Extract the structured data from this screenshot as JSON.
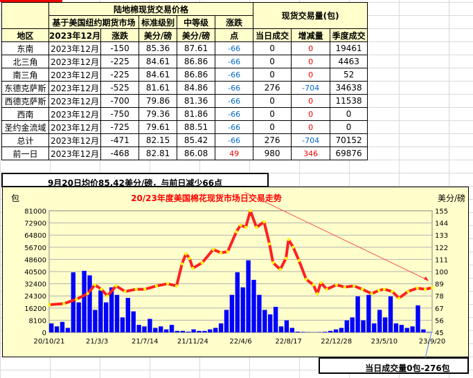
{
  "table": {
    "group_price": "陆地棉现货交易价格",
    "group_volume": "现货交易量(包)",
    "sub_basis": "基于美国纽约期货市场",
    "sub_standard": "标准级别",
    "sub_middle": "中等级",
    "sub_change": "涨跌",
    "col_region": "地区",
    "col_contract": "2023年12月",
    "col_basis_change": "涨跌",
    "col_standard_unit": "美分/磅",
    "col_middle_unit": "美分/磅",
    "col_change_unit": "点",
    "col_today": "当日成交",
    "col_delta": "增减量",
    "col_season": "季度成交",
    "rows": [
      {
        "region": "东南",
        "contract": "2023年12月",
        "basis": "-150",
        "standard": "85.36",
        "middle": "87.61",
        "change": "-66",
        "today": "0",
        "delta": "0",
        "season": "19461"
      },
      {
        "region": "北三角",
        "contract": "2023年12月",
        "basis": "-225",
        "standard": "84.61",
        "middle": "86.86",
        "change": "-66",
        "today": "0",
        "delta": "0",
        "season": "4463"
      },
      {
        "region": "南三角",
        "contract": "2023年12月",
        "basis": "-225",
        "standard": "84.61",
        "middle": "86.86",
        "change": "-66",
        "today": "0",
        "delta": "0",
        "season": "52"
      },
      {
        "region": "东德克萨斯",
        "contract": "2023年12月",
        "basis": "-525",
        "standard": "81.61",
        "middle": "84.86",
        "change": "-66",
        "today": "276",
        "delta": "-704",
        "season": "34638"
      },
      {
        "region": "西德克萨斯",
        "contract": "2023年12月",
        "basis": "-700",
        "standard": "79.86",
        "middle": "81.36",
        "change": "-66",
        "today": "0",
        "delta": "0",
        "season": "11538"
      },
      {
        "region": "西南",
        "contract": "2023年12月",
        "basis": "-750",
        "standard": "79.36",
        "middle": "81.86",
        "change": "-66",
        "today": "0",
        "delta": "0",
        "season": "0"
      },
      {
        "region": "圣约金流域",
        "contract": "2023年12月",
        "basis": "-725",
        "standard": "79.61",
        "middle": "88.51",
        "change": "-66",
        "today": "0",
        "delta": "0",
        "season": "0"
      },
      {
        "region": "总计",
        "contract": "2023年12月",
        "basis": "-471",
        "standard": "82.15",
        "middle": "85.42",
        "change": "-66",
        "today": "276",
        "delta": "-704",
        "season": "70152"
      },
      {
        "region": "前一日",
        "contract": "2023年12月",
        "basis": "-468",
        "standard": "82.81",
        "middle": "86.08",
        "change": "49",
        "today": "980",
        "delta": "346",
        "season": "69876"
      }
    ]
  },
  "annotation_price": "9月20日均价85.42美分/磅，与前日减少66点",
  "annotation_volume": "当日成交量0包-276包",
  "colors": {
    "header_bg": "#ffffcc",
    "chart_bg": "#ffffcc",
    "volume": "#0000ff",
    "price_line": "#ff2020",
    "price_marker": "#ffff00",
    "negative": "#0066cc",
    "positive": "#ee0000"
  },
  "chart_data": {
    "type": "bar+line",
    "title": "20/23年度美国棉花现货市场日交易走势",
    "ylabel_left": "包",
    "ylabel_right": "美分/磅",
    "ylim_left": [
      0,
      81000
    ],
    "ylim_right": [
      45,
      155
    ],
    "yticks_left": [
      "81000",
      "72900",
      "64800",
      "56700",
      "48600",
      "40500",
      "32400",
      "24300",
      "16200",
      "8100",
      "0"
    ],
    "yticks_right": [
      "155",
      "144",
      "133",
      "122",
      "111",
      "100",
      "89",
      "78",
      "67",
      "56",
      "45"
    ],
    "xlim": [
      "2020-10-21",
      "2023-09-20"
    ],
    "xticks": [
      "20/10/21",
      "21/3/3",
      "21/7/14",
      "21/11/24",
      "22/4/6",
      "22/8/17",
      "22/12/28",
      "23/5/10",
      "23/9/20"
    ],
    "grid": true,
    "series": [
      {
        "kind": "bar",
        "axis": "left",
        "values": [
          6000,
          4000,
          7000,
          3000,
          40000,
          20000,
          41000,
          38000,
          15000,
          28000,
          20000,
          30000,
          25000,
          10000,
          23000,
          14000,
          5000,
          4000,
          9000,
          3000,
          4000,
          2000,
          5000,
          1000,
          1000,
          500,
          2000,
          1000,
          1000,
          2000,
          3000,
          6000,
          15000,
          25000,
          40000,
          30000,
          48000,
          35000,
          25000,
          15000,
          12000,
          17000,
          4000,
          8000,
          3000,
          500,
          300,
          200,
          100,
          200,
          400,
          1000,
          2000,
          3000,
          8000,
          10000,
          24000,
          8000,
          25000,
          6000,
          15000,
          10000,
          24000,
          6000,
          5000,
          3000,
          4000,
          18000,
          2000,
          276
        ]
      },
      {
        "kind": "line",
        "axis": "right",
        "points": [
          [
            "2020-10-21",
            70
          ],
          [
            "2020-12-01",
            71
          ],
          [
            "2021-01-05",
            75
          ],
          [
            "2021-02-05",
            80
          ],
          [
            "2021-02-25",
            88
          ],
          [
            "2021-03-15",
            84
          ],
          [
            "2021-04-01",
            78
          ],
          [
            "2021-04-25",
            87
          ],
          [
            "2021-05-20",
            82
          ],
          [
            "2021-06-20",
            84
          ],
          [
            "2021-07-14",
            84
          ],
          [
            "2021-08-15",
            87
          ],
          [
            "2021-09-15",
            89
          ],
          [
            "2021-10-10",
            87
          ],
          [
            "2021-10-25",
            107
          ],
          [
            "2021-11-05",
            116
          ],
          [
            "2021-11-15",
            112
          ],
          [
            "2021-11-24",
            103
          ],
          [
            "2021-12-20",
            108
          ],
          [
            "2022-01-20",
            120
          ],
          [
            "2022-02-10",
            117
          ],
          [
            "2022-03-01",
            118
          ],
          [
            "2022-03-25",
            136
          ],
          [
            "2022-04-06",
            142
          ],
          [
            "2022-04-20",
            140
          ],
          [
            "2022-05-03",
            155
          ],
          [
            "2022-05-20",
            140
          ],
          [
            "2022-06-10",
            145
          ],
          [
            "2022-06-25",
            125
          ],
          [
            "2022-07-05",
            108
          ],
          [
            "2022-07-25",
            102
          ],
          [
            "2022-08-10",
            112
          ],
          [
            "2022-08-17",
            129
          ],
          [
            "2022-08-30",
            122
          ],
          [
            "2022-09-15",
            110
          ],
          [
            "2022-10-05",
            93
          ],
          [
            "2022-10-25",
            88
          ],
          [
            "2022-11-05",
            80
          ],
          [
            "2022-11-15",
            90
          ],
          [
            "2022-12-01",
            84
          ],
          [
            "2022-12-28",
            88
          ],
          [
            "2023-01-20",
            86
          ],
          [
            "2023-02-15",
            87
          ],
          [
            "2023-03-10",
            84
          ],
          [
            "2023-04-05",
            80
          ],
          [
            "2023-04-25",
            83
          ],
          [
            "2023-05-10",
            84
          ],
          [
            "2023-06-01",
            82
          ],
          [
            "2023-06-20",
            76
          ],
          [
            "2023-07-15",
            82
          ],
          [
            "2023-08-10",
            85
          ],
          [
            "2023-09-01",
            84
          ],
          [
            "2023-09-20",
            85.42
          ]
        ]
      }
    ]
  }
}
